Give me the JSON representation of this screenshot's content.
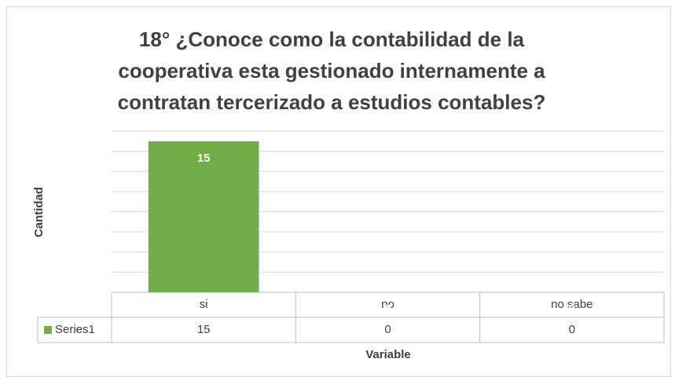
{
  "chart_data": {
    "type": "bar",
    "title": "18° ¿Conoce como la contabilidad de la cooperativa esta gestionado internamente a contratan tercerizado a estudios contables?",
    "x_label": "Variable",
    "y_label": "Cantidad",
    "categories": [
      "si",
      "no",
      "no sabe"
    ],
    "series": [
      {
        "name": "Series1",
        "color": "#70ad47",
        "values": [
          15,
          0,
          0
        ]
      }
    ],
    "ylim": [
      0,
      16
    ],
    "yticks": [
      0,
      2,
      4,
      6,
      8,
      10,
      12,
      14,
      16
    ],
    "grid": true,
    "data_table": true
  }
}
